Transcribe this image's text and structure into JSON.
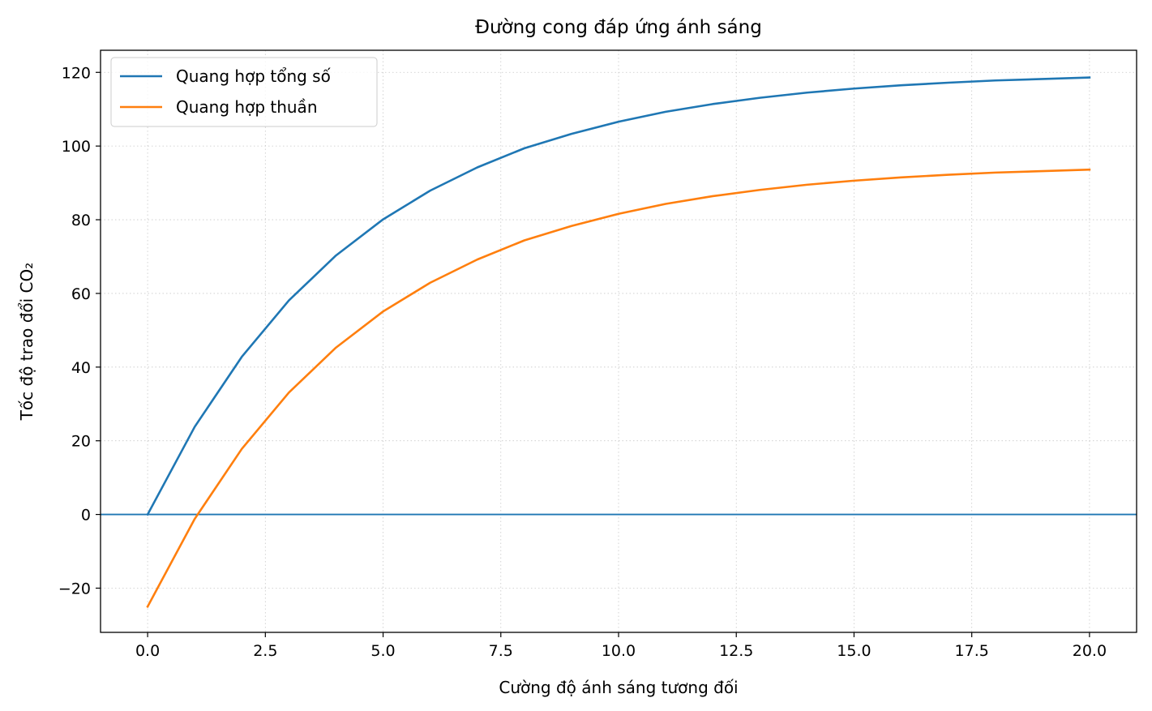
{
  "chart_data": {
    "type": "line",
    "title": "Đường cong đáp ứng ánh sáng",
    "xlabel": "Cường độ ánh sáng tương đối",
    "ylabel": "Tốc độ trao đổi CO₂",
    "xlim": [
      -1,
      21
    ],
    "ylim": [
      -32,
      126
    ],
    "xticks": [
      0,
      2.5,
      5,
      7.5,
      10,
      12.5,
      15,
      17.5,
      20
    ],
    "xtick_labels": [
      "0.0",
      "2.5",
      "5.0",
      "7.5",
      "10.0",
      "12.5",
      "15.0",
      "17.5",
      "20.0"
    ],
    "yticks": [
      -20,
      0,
      20,
      40,
      60,
      80,
      100,
      120
    ],
    "ytick_labels": [
      "−20",
      "0",
      "20",
      "40",
      "60",
      "80",
      "100",
      "120"
    ],
    "grid": true,
    "legend_position": "top-left",
    "reference_line": {
      "y": 0,
      "color": "#1f77b4"
    },
    "x": [
      0,
      1,
      2,
      3,
      4,
      5,
      6,
      7,
      8,
      9,
      10,
      11,
      12,
      13,
      14,
      15,
      16,
      17,
      18,
      19,
      20
    ],
    "series": [
      {
        "name": "Quang hợp tổng số",
        "color": "#1f77b4",
        "values": [
          0,
          23.8,
          42.8,
          58.1,
          70.3,
          80.1,
          87.9,
          94.2,
          99.4,
          103.3,
          106.6,
          109.3,
          111.4,
          113.1,
          114.5,
          115.6,
          116.5,
          117.2,
          117.8,
          118.2,
          118.6
        ]
      },
      {
        "name": "Quang hợp thuần",
        "color": "#ff7f0e",
        "values": [
          -25,
          -1.2,
          17.8,
          33.1,
          45.3,
          55.1,
          62.9,
          69.2,
          74.4,
          78.3,
          81.6,
          84.3,
          86.4,
          88.1,
          89.5,
          90.6,
          91.5,
          92.2,
          92.8,
          93.2,
          93.6
        ]
      }
    ]
  }
}
